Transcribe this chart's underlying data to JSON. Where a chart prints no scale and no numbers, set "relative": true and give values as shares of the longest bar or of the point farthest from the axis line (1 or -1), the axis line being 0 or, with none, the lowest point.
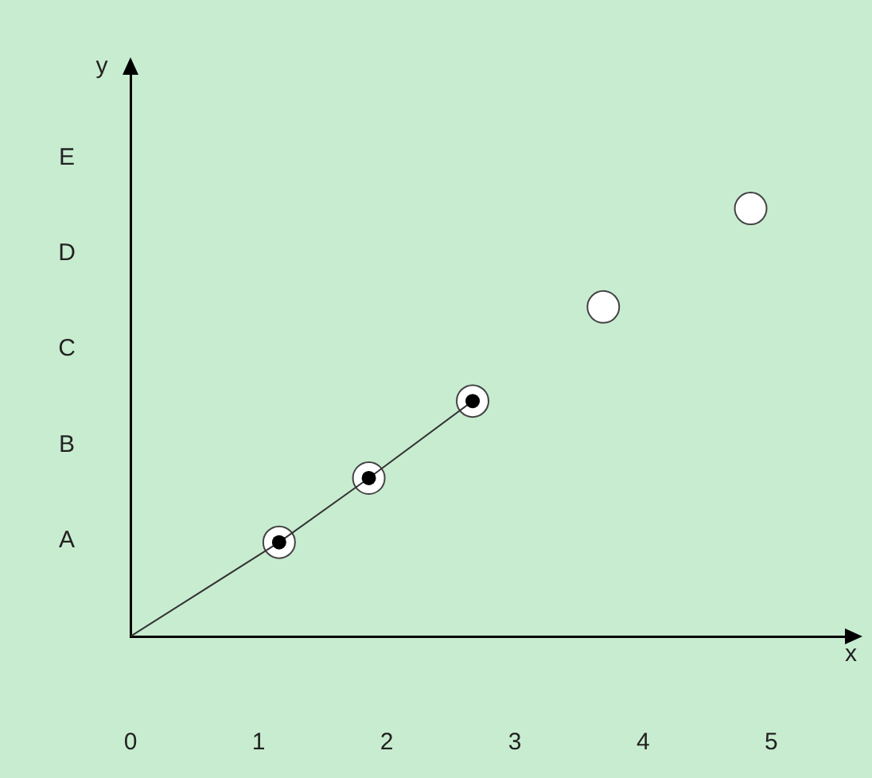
{
  "chart_data": {
    "type": "scatter",
    "xlabel": "x",
    "relative": true,
    "xlim": [
      0,
      5.6
    ],
    "xticks": [
      0,
      1,
      2,
      3,
      4,
      5
    ],
    "annotations": [
      "A",
      "B",
      "C",
      "D",
      "E",
      "y"
    ],
    "grid": false,
    "legend": false,
    "series": [
      {
        "type": "line",
        "color": "#333333",
        "x": [
          0,
          1.16,
          1.86,
          2.67
        ],
        "values": [
          0,
          0.22,
          0.37,
          0.55
        ]
      },
      {
        "color": "#000000",
        "marker": "circle",
        "x": [
          1.16,
          1.86,
          2.67
        ],
        "values": [
          0.22,
          0.37,
          0.55
        ]
      },
      {
        "color": "#ffffff",
        "marker": "circle",
        "x": [
          3.69,
          4.84
        ],
        "values": [
          0.77,
          1
        ]
      }
    ]
  }
}
